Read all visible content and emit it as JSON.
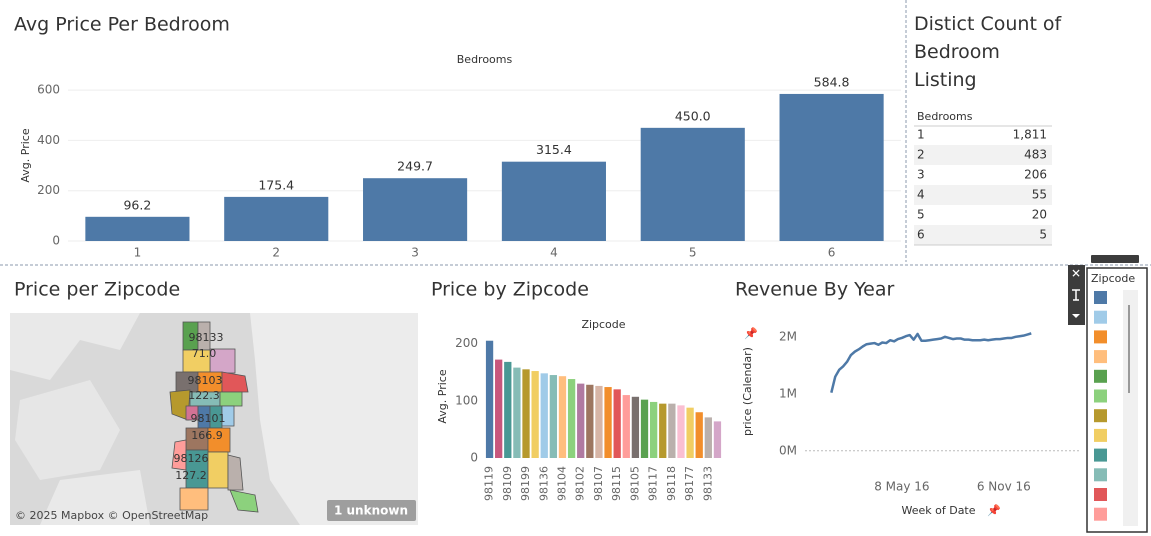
{
  "chart_data": [
    {
      "type": "bar",
      "title": "Avg Price Per Bedroom",
      "xlabel": "Bedrooms",
      "ylabel": "Avg. Price",
      "categories": [
        "1",
        "2",
        "3",
        "4",
        "5",
        "6"
      ],
      "values": [
        96.2,
        175.4,
        249.7,
        315.4,
        450.0,
        584.8
      ],
      "value_labels": [
        "96.2",
        "175.4",
        "249.7",
        "315.4",
        "450.0",
        "584.8"
      ],
      "color": "#4e79a7",
      "ylim": [
        0,
        680
      ],
      "yticks": [
        0,
        200,
        400,
        600
      ],
      "grid": true
    },
    {
      "type": "bar",
      "title": "Price by Zipcode",
      "xlabel": "Zipcode",
      "ylabel": "Avg. Price",
      "categories": [
        "98119",
        null,
        "98109",
        null,
        "98199",
        null,
        "98136",
        null,
        "98104",
        null,
        "98102",
        null,
        "98107",
        null,
        "98115",
        null,
        "98105",
        null,
        "98117",
        null,
        "98118",
        null,
        "98177",
        null,
        "98133",
        null
      ],
      "values": [
        205,
        172,
        168,
        158,
        155,
        152,
        148,
        145,
        143,
        138,
        130,
        128,
        126,
        124,
        120,
        110,
        107,
        102,
        98,
        95,
        95,
        92,
        88,
        80,
        71,
        64
      ],
      "colors": [
        "#4e79a7",
        "#c7577d",
        "#499894",
        "#86bcb6",
        "#b6992d",
        "#f1ce63",
        "#a0cbe8",
        "#86bcb6",
        "#ffbe7d",
        "#8cd17d",
        "#b07aa1",
        "#9d7660",
        "#d7b5a6",
        "#f28e2b",
        "#e15759",
        "#ff9d9a",
        "#79706e",
        "#59a14f",
        "#8cd17d",
        "#b6992d",
        "#bab0ac",
        "#fabfd2",
        "#f1ce63",
        "#f28e2b",
        "#bab0ac",
        "#d4a6c8"
      ],
      "ylim": [
        0,
        215
      ],
      "yticks": [
        0,
        100,
        200
      ],
      "grid": false
    },
    {
      "type": "line",
      "title": "Revenue By Year",
      "xlabel": "Week of Date",
      "ylabel": "price (Calendar)",
      "x": [
        "2016-01-03",
        "2016-01-10",
        "2016-01-17",
        "2016-01-24",
        "2016-01-31",
        "2016-02-07",
        "2016-02-14",
        "2016-02-21",
        "2016-02-28",
        "2016-03-06",
        "2016-03-13",
        "2016-03-20",
        "2016-03-27",
        "2016-04-03",
        "2016-04-10",
        "2016-04-17",
        "2016-04-24",
        "2016-05-01",
        "2016-05-08",
        "2016-05-15",
        "2016-05-22",
        "2016-05-29",
        "2016-06-05",
        "2016-06-12",
        "2016-06-19",
        "2016-06-26",
        "2016-07-03",
        "2016-07-10",
        "2016-07-17",
        "2016-07-24",
        "2016-07-31",
        "2016-08-07",
        "2016-08-14",
        "2016-08-21",
        "2016-08-28",
        "2016-09-04",
        "2016-09-11",
        "2016-09-18",
        "2016-09-25",
        "2016-10-02",
        "2016-10-09",
        "2016-10-16",
        "2016-10-23",
        "2016-10-30",
        "2016-11-06",
        "2016-11-13",
        "2016-11-20",
        "2016-11-27",
        "2016-12-04",
        "2016-12-11",
        "2016-12-18",
        "2016-12-25"
      ],
      "values": [
        1020000,
        1300000,
        1420000,
        1480000,
        1560000,
        1680000,
        1740000,
        1780000,
        1830000,
        1870000,
        1880000,
        1890000,
        1860000,
        1900000,
        1890000,
        1940000,
        1920000,
        1960000,
        1980000,
        2010000,
        2030000,
        1950000,
        2050000,
        1930000,
        1930000,
        1940000,
        1950000,
        1960000,
        1970000,
        2000000,
        1980000,
        1960000,
        1970000,
        1970000,
        1950000,
        1950000,
        1940000,
        1940000,
        1940000,
        1950000,
        1940000,
        1950000,
        1960000,
        1960000,
        1970000,
        1980000,
        1980000,
        2000000,
        2010000,
        2020000,
        2040000,
        2060000
      ],
      "color": "#4e79a7",
      "xlim": [
        "2015-11-17",
        "2017-03-22"
      ],
      "xticks": [
        {
          "value": "2016-05-08",
          "label": "8 May 16"
        },
        {
          "value": "2016-11-06",
          "label": "6 Nov 16"
        }
      ],
      "ylim": [
        -250000,
        2330000
      ],
      "yticks": [
        {
          "value": 0,
          "label": "0M"
        },
        {
          "value": 1000000,
          "label": "1M"
        },
        {
          "value": 2000000,
          "label": "2M"
        }
      ]
    }
  ],
  "table": {
    "title": "Distict Count of Bedroom Listing",
    "header": "Bedrooms",
    "rows": [
      [
        "1",
        "1,811"
      ],
      [
        "2",
        "483"
      ],
      [
        "3",
        "206"
      ],
      [
        "4",
        "55"
      ],
      [
        "5",
        "20"
      ],
      [
        "6",
        "5"
      ]
    ]
  },
  "map": {
    "title": "Price per Zipcode",
    "labels": [
      "98133",
      "71.0",
      "98103",
      "122.3",
      "98101",
      "166.9",
      "98126",
      "127.2"
    ],
    "attribution": "© 2025 Mapbox © OpenStreetMap",
    "unknown": "1 unknown"
  },
  "legend": {
    "title": "Zipcode",
    "colors": [
      "#4e79a7",
      "#a0cbe8",
      "#f28e2b",
      "#ffbe7d",
      "#59a14f",
      "#8cd17d",
      "#b6992d",
      "#f1ce63",
      "#499894",
      "#86bcb6",
      "#e15759",
      "#ff9d9a"
    ]
  }
}
